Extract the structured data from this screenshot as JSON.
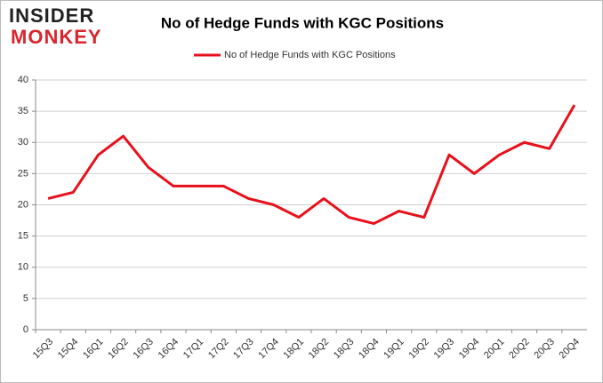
{
  "logo": {
    "line1": "INSIDER",
    "line2": "MONKEY"
  },
  "chart_data": {
    "type": "line",
    "title": "No of Hedge Funds with KGC Positions",
    "categories": [
      "15Q3",
      "15Q4",
      "16Q1",
      "16Q2",
      "16Q3",
      "16Q4",
      "17Q1",
      "17Q2",
      "17Q3",
      "17Q4",
      "18Q1",
      "18Q2",
      "18Q3",
      "18Q4",
      "19Q1",
      "19Q2",
      "19Q3",
      "19Q4",
      "20Q1",
      "20Q2",
      "20Q3",
      "20Q4"
    ],
    "series": [
      {
        "name": "No of Hedge Funds with KGC Positions",
        "color": "#e8101a",
        "values": [
          21,
          22,
          28,
          31,
          26,
          23,
          23,
          23,
          21,
          20,
          18,
          21,
          18,
          17,
          19,
          18,
          28,
          25,
          28,
          30,
          29,
          36
        ]
      }
    ],
    "ylim": [
      0,
      40
    ],
    "yticks": [
      0,
      5,
      10,
      15,
      20,
      25,
      30,
      35,
      40
    ],
    "grid": true,
    "legend": "top"
  }
}
